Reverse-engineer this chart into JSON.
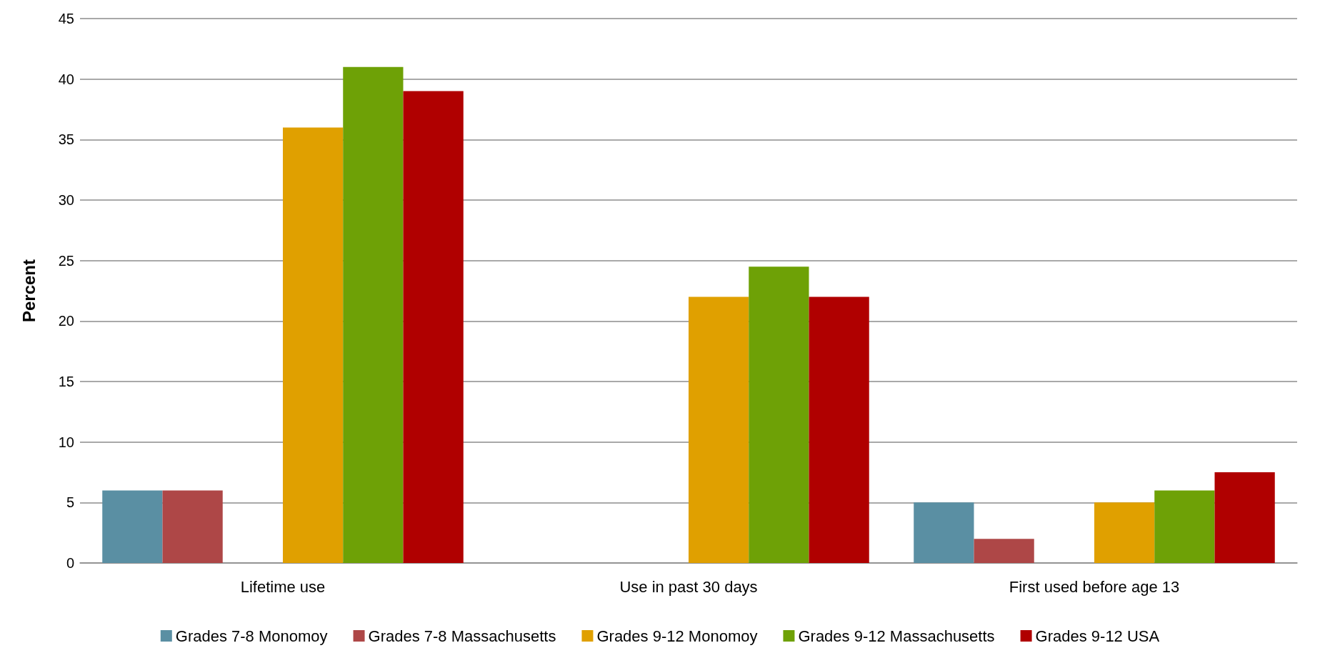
{
  "chart_data": {
    "type": "bar",
    "ylabel": "Percent",
    "categories": [
      "Lifetime use",
      "Use in past 30 days",
      "First used before age 13"
    ],
    "series": [
      {
        "name": "Grades 7-8 Monomoy",
        "color": "#5a8fa3",
        "values": [
          6,
          null,
          5
        ]
      },
      {
        "name": "Grades 7-8 Massachusetts",
        "color": "#ae4747",
        "values": [
          6,
          null,
          2
        ]
      },
      {
        "name": "Grades 9-12 Monomoy",
        "color": "#e0a000",
        "values": [
          36,
          22,
          5
        ]
      },
      {
        "name": "Grades 9-12 Massachusetts",
        "color": "#6ea106",
        "values": [
          41,
          24.5,
          6
        ]
      },
      {
        "name": "Grades 9-12 USA",
        "color": "#b00000",
        "values": [
          39,
          22,
          7.5
        ]
      }
    ],
    "ylim": [
      0,
      45
    ],
    "yticks": [
      0,
      5,
      10,
      15,
      20,
      25,
      30,
      35,
      40,
      45
    ],
    "grid": "y",
    "legend": "bottom"
  }
}
